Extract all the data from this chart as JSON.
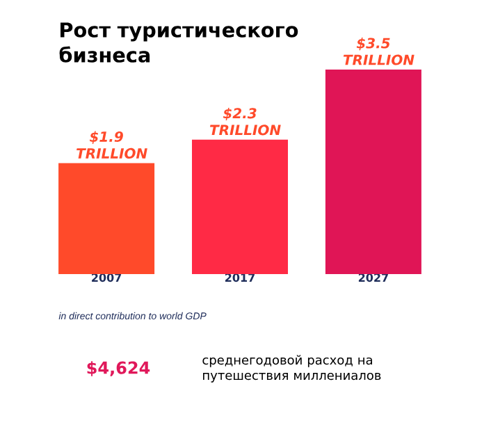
{
  "chart_data": {
    "type": "bar",
    "title": "Рост туристического бизнеса",
    "categories": [
      "2007",
      "2017",
      "2027"
    ],
    "values": [
      1.9,
      2.3,
      3.5
    ],
    "colors": [
      "#ff4a2a",
      "#ff2a45",
      "#e01556"
    ],
    "value_labels": [
      "$1.9 TRILLION",
      "$2.3 TRILLION",
      "$3.5 TRILLION"
    ],
    "tick_labels": "x",
    "grid": false,
    "annotations": [
      "in direct contribution to world GDP",
      "$4,624",
      "среднегодовой расход на путешествия миллениалов"
    ]
  }
}
